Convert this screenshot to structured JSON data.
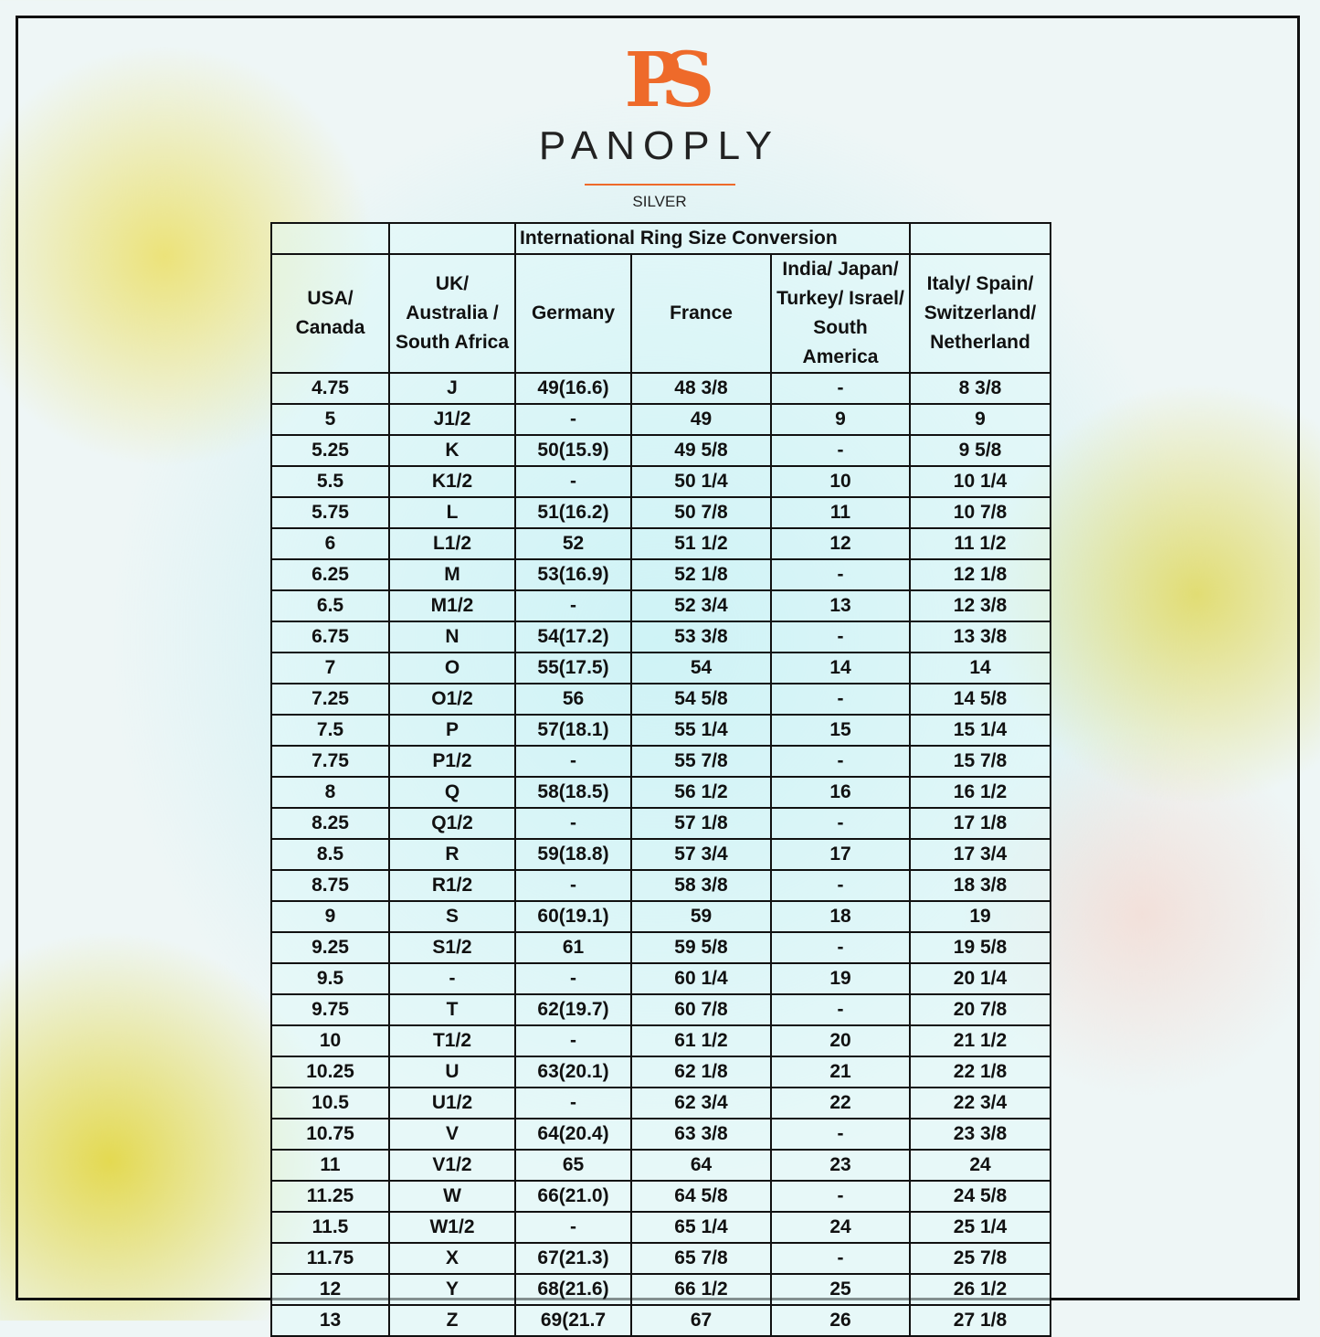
{
  "logo": {
    "mark": "PS",
    "name": "PANOPLY",
    "tagline": "SILVER"
  },
  "table": {
    "title": "International Ring Size Conversion",
    "headers": [
      "USA/ Canada",
      "UK/ Australia / South Africa",
      "Germany",
      "France",
      "India/ Japan/ Turkey/ Israel/ South America",
      "Italy/ Spain/ Switzerland/ Netherland"
    ],
    "rows": [
      [
        "4.75",
        "J",
        "49(16.6)",
        "48 3/8",
        "-",
        "8 3/8"
      ],
      [
        "5",
        "J1/2",
        "-",
        "49",
        "9",
        "9"
      ],
      [
        "5.25",
        "K",
        "50(15.9)",
        "49 5/8",
        "-",
        "9 5/8"
      ],
      [
        "5.5",
        "K1/2",
        "-",
        "50 1/4",
        "10",
        "10 1/4"
      ],
      [
        "5.75",
        "L",
        "51(16.2)",
        "50 7/8",
        "11",
        "10 7/8"
      ],
      [
        "6",
        "L1/2",
        "52",
        "51 1/2",
        "12",
        "11 1/2"
      ],
      [
        "6.25",
        "M",
        "53(16.9)",
        "52 1/8",
        "-",
        "12 1/8"
      ],
      [
        "6.5",
        "M1/2",
        "-",
        "52 3/4",
        "13",
        "12 3/8"
      ],
      [
        "6.75",
        "N",
        "54(17.2)",
        "53 3/8",
        "-",
        "13 3/8"
      ],
      [
        "7",
        "O",
        "55(17.5)",
        "54",
        "14",
        "14"
      ],
      [
        "7.25",
        "O1/2",
        "56",
        "54 5/8",
        "-",
        "14 5/8"
      ],
      [
        "7.5",
        "P",
        "57(18.1)",
        "55 1/4",
        "15",
        "15 1/4"
      ],
      [
        "7.75",
        "P1/2",
        "-",
        "55 7/8",
        "-",
        "15 7/8"
      ],
      [
        "8",
        "Q",
        "58(18.5)",
        "56 1/2",
        "16",
        "16 1/2"
      ],
      [
        "8.25",
        "Q1/2",
        "-",
        "57 1/8",
        "-",
        "17 1/8"
      ],
      [
        "8.5",
        "R",
        "59(18.8)",
        "57 3/4",
        "17",
        "17 3/4"
      ],
      [
        "8.75",
        "R1/2",
        "-",
        "58 3/8",
        "-",
        "18 3/8"
      ],
      [
        "9",
        "S",
        "60(19.1)",
        "59",
        "18",
        "19"
      ],
      [
        "9.25",
        "S1/2",
        "61",
        "59 5/8",
        "-",
        "19 5/8"
      ],
      [
        "9.5",
        "-",
        "-",
        "60 1/4",
        "19",
        "20 1/4"
      ],
      [
        "9.75",
        "T",
        "62(19.7)",
        "60 7/8",
        "-",
        "20 7/8"
      ],
      [
        "10",
        "T1/2",
        "-",
        "61 1/2",
        "20",
        "21 1/2"
      ],
      [
        "10.25",
        "U",
        "63(20.1)",
        "62 1/8",
        "21",
        "22 1/8"
      ],
      [
        "10.5",
        "U1/2",
        "-",
        "62 3/4",
        "22",
        "22 3/4"
      ],
      [
        "10.75",
        "V",
        "64(20.4)",
        "63 3/8",
        "-",
        "23 3/8"
      ],
      [
        "11",
        "V1/2",
        "65",
        "64",
        "23",
        "24"
      ],
      [
        "11.25",
        "W",
        "66(21.0)",
        "64 5/8",
        "-",
        "24 5/8"
      ],
      [
        "11.5",
        "W1/2",
        "-",
        "65 1/4",
        "24",
        "25 1/4"
      ],
      [
        "11.75",
        "X",
        "67(21.3)",
        "65 7/8",
        "-",
        "25 7/8"
      ],
      [
        "12",
        "Y",
        "68(21.6)",
        "66 1/2",
        "25",
        "26 1/2"
      ],
      [
        "13",
        "Z",
        "69(21.7",
        "67",
        "26",
        "27 1/8"
      ]
    ]
  }
}
